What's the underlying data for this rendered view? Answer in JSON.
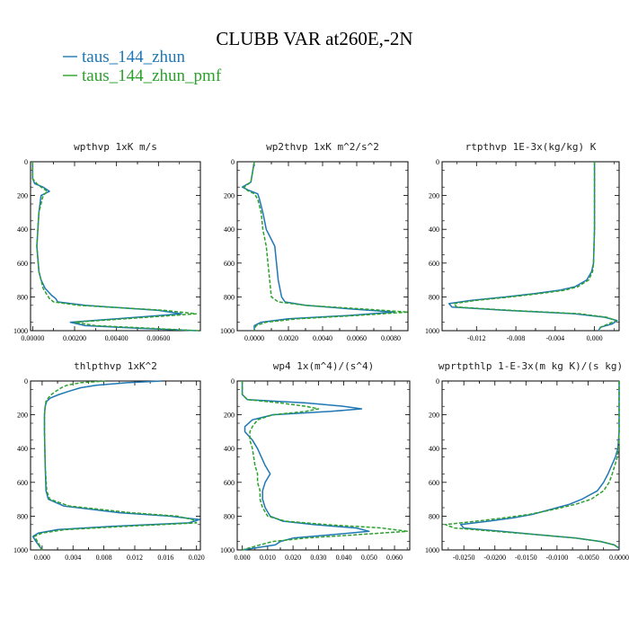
{
  "figure": {
    "title": "CLUBB VAR at260E,-2N",
    "legend": [
      {
        "name": "taus_144_zhun",
        "color": "#1f77b4"
      },
      {
        "name": "taus_144_zhun_pmf",
        "color": "#2ca02c"
      }
    ]
  },
  "chart_data": [
    {
      "type": "line",
      "title": "wpthvp   1xK m/s",
      "ylim": [
        1000,
        0
      ],
      "xlim": [
        -0.0001,
        0.008
      ],
      "xticks": [
        0.0,
        0.002,
        0.004,
        0.006
      ],
      "xtick_labels": [
        "0.00000",
        "0.00200",
        "0.00400",
        "0.00600"
      ],
      "yticks": [
        0,
        200,
        400,
        600,
        800,
        1000
      ],
      "y": [
        0,
        100,
        130,
        150,
        175,
        200,
        300,
        500,
        650,
        700,
        750,
        790,
        810,
        830,
        850,
        880,
        900,
        920,
        950,
        970,
        985,
        1000
      ],
      "series": [
        {
          "name": "taus_144_zhun",
          "values": [
            0.0,
            0.0,
            0.0001,
            0.0005,
            0.0008,
            0.0004,
            0.0003,
            0.0002,
            0.0003,
            0.0004,
            0.0006,
            0.0009,
            0.0011,
            0.0012,
            0.0025,
            0.006,
            0.0071,
            0.005,
            0.0018,
            0.0025,
            0.005,
            0.0078
          ]
        },
        {
          "name": "taus_144_zhun_pmf",
          "values": [
            0.0,
            0.0,
            0.0002,
            0.0004,
            0.0007,
            0.0005,
            0.0003,
            0.0002,
            0.0003,
            0.0004,
            0.0005,
            0.0007,
            0.0008,
            0.001,
            0.0022,
            0.0063,
            0.0078,
            0.0055,
            0.002,
            0.003,
            0.0055,
            0.0079
          ]
        }
      ]
    },
    {
      "type": "line",
      "title": "wp2thvp   1xK m^2/s^2",
      "ylim": [
        1000,
        0
      ],
      "xlim": [
        -0.001,
        0.009
      ],
      "xticks": [
        0.0,
        0.002,
        0.004,
        0.006,
        0.008
      ],
      "xtick_labels": [
        "0.0000",
        "0.0020",
        "0.0040",
        "0.0060",
        "0.0080"
      ],
      "yticks": [
        0,
        200,
        400,
        600,
        800,
        1000
      ],
      "y": [
        0,
        120,
        150,
        170,
        190,
        220,
        300,
        400,
        500,
        600,
        700,
        800,
        830,
        850,
        870,
        890,
        910,
        930,
        950,
        970,
        1000
      ],
      "series": [
        {
          "name": "taus_144_zhun",
          "values": [
            0.0,
            -0.0002,
            -0.0007,
            -0.0003,
            0.0002,
            0.0003,
            0.0005,
            0.0007,
            0.0012,
            0.0013,
            0.0014,
            0.0016,
            0.0018,
            0.003,
            0.0055,
            0.0082,
            0.0055,
            0.002,
            0.0004,
            0.0,
            0.0
          ]
        },
        {
          "name": "taus_144_zhun_pmf",
          "values": [
            0.0,
            -0.0002,
            -0.0006,
            -0.0004,
            0.0,
            0.0002,
            0.0004,
            0.0005,
            0.0007,
            0.0008,
            0.0009,
            0.001,
            0.0014,
            0.003,
            0.0062,
            0.009,
            0.006,
            0.0025,
            0.0007,
            0.0001,
            0.0
          ]
        }
      ]
    },
    {
      "type": "line",
      "title": "rtpthvp   1E-3x(kg/kg) K",
      "ylim": [
        1000,
        0
      ],
      "xlim": [
        -0.0155,
        0.0025
      ],
      "xticks": [
        -0.012,
        -0.008,
        -0.004,
        0.0
      ],
      "xtick_labels": [
        "-0.012",
        "-0.008",
        "-0.004",
        "0.000"
      ],
      "yticks": [
        0,
        200,
        400,
        600,
        800,
        1000
      ],
      "y": [
        0,
        200,
        400,
        600,
        650,
        700,
        740,
        760,
        780,
        800,
        820,
        840,
        860,
        880,
        900,
        920,
        940,
        960,
        980,
        1000
      ],
      "series": [
        {
          "name": "taus_144_zhun",
          "values": [
            0.0,
            0.0,
            0.0,
            -0.0001,
            -0.0003,
            -0.0008,
            -0.002,
            -0.0035,
            -0.006,
            -0.009,
            -0.0125,
            -0.0148,
            -0.0145,
            -0.009,
            -0.002,
            0.001,
            0.0023,
            0.0018,
            0.0006,
            0.0004
          ]
        },
        {
          "name": "taus_144_zhun_pmf",
          "values": [
            0.0,
            0.0,
            0.0,
            -0.0001,
            -0.0002,
            -0.0006,
            -0.0017,
            -0.003,
            -0.0055,
            -0.0085,
            -0.012,
            -0.0143,
            -0.014,
            -0.0085,
            -0.0015,
            0.0012,
            0.0022,
            0.0014,
            0.0006,
            0.0005
          ]
        }
      ]
    },
    {
      "type": "line",
      "title": "thlpthvp   1xK^2",
      "ylim": [
        1000,
        0
      ],
      "xlim": [
        -0.0015,
        0.0205
      ],
      "xticks": [
        0.0,
        0.004,
        0.008,
        0.012,
        0.016,
        0.02
      ],
      "xtick_labels": [
        "0.000",
        "0.004",
        "0.008",
        "0.012",
        "0.016",
        "0.020"
      ],
      "yticks": [
        0,
        200,
        400,
        600,
        800,
        1000
      ],
      "y": [
        0,
        10,
        25,
        40,
        60,
        80,
        100,
        120,
        150,
        200,
        300,
        500,
        650,
        700,
        740,
        780,
        800,
        820,
        840,
        860,
        880,
        900,
        920,
        950,
        1000
      ],
      "series": [
        {
          "name": "taus_144_zhun",
          "values": [
            0.0155,
            0.011,
            0.007,
            0.005,
            0.0035,
            0.0022,
            0.0011,
            0.0006,
            0.0004,
            0.0003,
            0.0003,
            0.0004,
            0.0005,
            0.0008,
            0.0028,
            0.01,
            0.0165,
            0.0204,
            0.019,
            0.009,
            0.002,
            -0.0005,
            -0.0012,
            -0.0008,
            0.0
          ]
        },
        {
          "name": "taus_144_zhun_pmf",
          "values": [
            0.0082,
            0.005,
            0.0032,
            0.0025,
            0.0018,
            0.0012,
            0.0008,
            0.0005,
            0.0004,
            0.0003,
            0.0003,
            0.0004,
            0.0006,
            0.001,
            0.0035,
            0.0115,
            0.0175,
            0.0195,
            0.02,
            0.011,
            0.003,
            0.0,
            -0.001,
            -0.0006,
            0.0
          ]
        }
      ]
    },
    {
      "type": "line",
      "title": "wp4   1x(m^4)/(s^4)",
      "ylim": [
        1000,
        0
      ],
      "xlim": [
        -0.002,
        0.066
      ],
      "xticks": [
        0.0,
        0.01,
        0.02,
        0.03,
        0.04,
        0.05,
        0.06
      ],
      "xtick_labels": [
        "0.000",
        "0.010",
        "0.020",
        "0.030",
        "0.040",
        "0.050",
        "0.060"
      ],
      "yticks": [
        0,
        200,
        400,
        600,
        800,
        1000
      ],
      "y": [
        0,
        80,
        110,
        130,
        150,
        165,
        180,
        200,
        230,
        270,
        300,
        350,
        400,
        500,
        550,
        600,
        650,
        700,
        750,
        800,
        830,
        850,
        870,
        890,
        910,
        930,
        950,
        970,
        1000
      ],
      "series": [
        {
          "name": "taus_144_zhun",
          "values": [
            0.0,
            0.0,
            0.002,
            0.025,
            0.04,
            0.047,
            0.035,
            0.012,
            0.004,
            0.001,
            0.001,
            0.004,
            0.006,
            0.009,
            0.011,
            0.009,
            0.008,
            0.008,
            0.009,
            0.011,
            0.016,
            0.028,
            0.045,
            0.05,
            0.035,
            0.02,
            0.015,
            0.013,
            0.0
          ]
        },
        {
          "name": "taus_144_zhun_pmf",
          "values": [
            0.0,
            0.0,
            0.002,
            0.015,
            0.025,
            0.03,
            0.025,
            0.012,
            0.006,
            0.004,
            0.003,
            0.003,
            0.004,
            0.005,
            0.006,
            0.006,
            0.007,
            0.007,
            0.008,
            0.01,
            0.017,
            0.033,
            0.055,
            0.065,
            0.045,
            0.025,
            0.012,
            0.007,
            0.0
          ]
        }
      ]
    },
    {
      "type": "line",
      "title": "wprtpthlp   1-E-3x(m kg K)/(s kg)",
      "ylim": [
        1000,
        0
      ],
      "xlim": [
        -0.0285,
        0.0
      ],
      "xticks": [
        -0.025,
        -0.02,
        -0.015,
        -0.01,
        -0.005,
        0.0
      ],
      "xtick_labels": [
        "-0.0250",
        "-0.0200",
        "-0.0150",
        "-0.0100",
        "-0.0050",
        "0.0000"
      ],
      "yticks": [
        0,
        200,
        400,
        600,
        800,
        1000
      ],
      "y": [
        0,
        300,
        400,
        450,
        500,
        550,
        600,
        650,
        700,
        730,
        760,
        790,
        810,
        830,
        850,
        870,
        890,
        910,
        930,
        950,
        970,
        990
      ],
      "series": [
        {
          "name": "taus_144_zhun",
          "values": [
            0.0,
            0.0,
            -0.0002,
            -0.0006,
            -0.0012,
            -0.0018,
            -0.0025,
            -0.0035,
            -0.006,
            -0.008,
            -0.011,
            -0.014,
            -0.017,
            -0.021,
            -0.0255,
            -0.025,
            -0.019,
            -0.013,
            -0.007,
            -0.003,
            -0.0008,
            0.0
          ]
        },
        {
          "name": "taus_144_zhun_pmf",
          "values": [
            0.0,
            0.0,
            -0.0001,
            -0.0003,
            -0.0007,
            -0.0011,
            -0.0016,
            -0.0025,
            -0.0045,
            -0.007,
            -0.0105,
            -0.0145,
            -0.0185,
            -0.023,
            -0.028,
            -0.0265,
            -0.02,
            -0.013,
            -0.007,
            -0.003,
            -0.0008,
            0.0
          ]
        }
      ]
    }
  ]
}
